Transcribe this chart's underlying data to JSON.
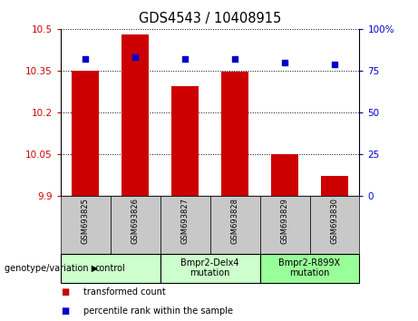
{
  "title": "GDS4543 / 10408915",
  "samples": [
    "GSM693825",
    "GSM693826",
    "GSM693827",
    "GSM693828",
    "GSM693829",
    "GSM693830"
  ],
  "transformed_counts": [
    10.35,
    10.48,
    10.295,
    10.345,
    10.05,
    9.97
  ],
  "percentile_ranks": [
    82,
    83,
    82,
    82,
    80,
    79
  ],
  "ylim_left": [
    9.9,
    10.5
  ],
  "ylim_right": [
    0,
    100
  ],
  "yticks_left": [
    9.9,
    10.05,
    10.2,
    10.35,
    10.5
  ],
  "yticks_right": [
    0,
    25,
    50,
    75,
    100
  ],
  "ytick_labels_left": [
    "9.9",
    "10.05",
    "10.2",
    "10.35",
    "10.5"
  ],
  "ytick_labels_right": [
    "0",
    "25",
    "50",
    "75",
    "100%"
  ],
  "bar_color": "#cc0000",
  "dot_color": "#0000cc",
  "bar_base": 9.9,
  "group_positions": [
    [
      0,
      1,
      "control"
    ],
    [
      2,
      3,
      "Bmpr2-Delx4\nmutation"
    ],
    [
      4,
      5,
      "Bmpr2-R899X\nmutation"
    ]
  ],
  "group_colors": [
    "#ccffcc",
    "#ccffcc",
    "#99ff99"
  ],
  "genotype_label": "genotype/variation",
  "legend_items": [
    {
      "color": "#cc0000",
      "label": "transformed count"
    },
    {
      "color": "#0000cc",
      "label": "percentile rank within the sample"
    }
  ],
  "tick_color_left": "#cc0000",
  "tick_color_right": "#0000cc",
  "sample_bg_color": "#c8c8c8",
  "bg_plot": "#ffffff"
}
